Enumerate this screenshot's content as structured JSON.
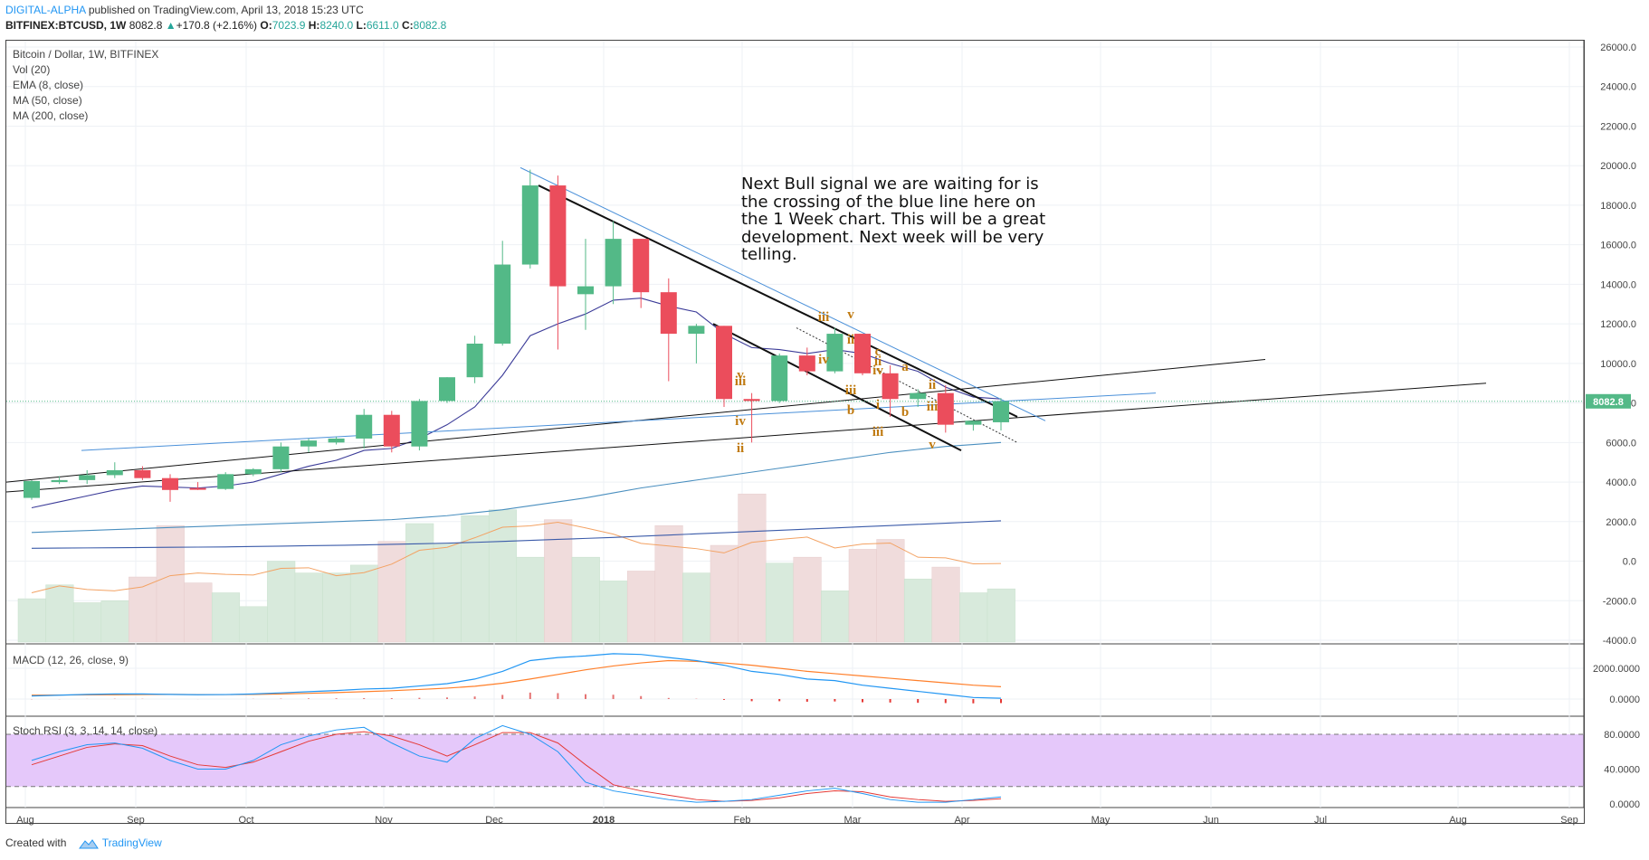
{
  "header": {
    "publisher": "DIGITAL-ALPHA",
    "published_text": " published on TradingView.com, April 13, 2018 15:23 UTC",
    "symbol": "BITFINEX:BTCUSD, 1W",
    "last": "8082.8",
    "change": "+170.8 (+2.16%)",
    "o_label": "O:",
    "o_val": "7023.9",
    "h_label": "H:",
    "h_val": "8240.0",
    "l_label": "L:",
    "l_val": "6611.0",
    "c_label": "C:",
    "c_val": "8082.8"
  },
  "legend": {
    "title": "Bitcoin / Dollar, 1W, BITFINEX",
    "vol": "Vol (20)",
    "ema": "EMA (8, close)",
    "ma50": "MA (50, close)",
    "ma200": "MA (200, close)",
    "macd": "MACD (12, 26, close, 9)",
    "stoch": "Stoch RSI (3, 3, 14, 14, close)"
  },
  "annotation": "Next Bull signal we are waiting for is\nthe crossing of the blue line here on\nthe 1 Week chart.  This will be a great\ndevelopment.  Next week will be very\ntelling.",
  "price_tag": "8082.8",
  "footer": {
    "created_with": "Created with",
    "brand": "TradingView"
  },
  "colors": {
    "bull": "#53b987",
    "bear": "#eb4d5c",
    "ema": "#3b3b98",
    "ma50": "#4a8fbf",
    "ma200": "#3b5ba9",
    "macd": "#2196f3",
    "signal": "#ff7f2a",
    "stoch_fill": "#e5c8fa",
    "wave": "#c07a10"
  },
  "chart_data": {
    "type": "candlestick",
    "title": "Bitcoin / Dollar, 1W, BITFINEX",
    "x_tick_labels": [
      "Aug",
      "Sep",
      "Oct",
      "Nov",
      "Dec",
      "2018",
      "Feb",
      "Mar",
      "Apr",
      "May",
      "Jun",
      "Jul",
      "Aug",
      "Sep"
    ],
    "y_tick_labels": [
      "26000.0",
      "24000.0",
      "22000.0",
      "20000.0",
      "18000.0",
      "16000.0",
      "14000.0",
      "12000.0",
      "10000.0",
      "8000.0",
      "6000.0",
      "4000.0",
      "2000.0",
      "0.0",
      "-2000.0",
      "-4000.0"
    ],
    "ylim": [
      -4000,
      26000
    ],
    "candles": [
      {
        "o": 3200,
        "h": 4100,
        "l": 3100,
        "c": 4050
      },
      {
        "o": 4000,
        "h": 4300,
        "l": 3900,
        "c": 4100
      },
      {
        "o": 4100,
        "h": 4600,
        "l": 3900,
        "c": 4350
      },
      {
        "o": 4350,
        "h": 5000,
        "l": 4200,
        "c": 4600
      },
      {
        "o": 4600,
        "h": 4800,
        "l": 4100,
        "c": 4200
      },
      {
        "o": 4200,
        "h": 4400,
        "l": 3000,
        "c": 3600
      },
      {
        "o": 3700,
        "h": 4000,
        "l": 3600,
        "c": 3650
      },
      {
        "o": 3650,
        "h": 4500,
        "l": 3600,
        "c": 4400
      },
      {
        "o": 4400,
        "h": 4700,
        "l": 4300,
        "c": 4650
      },
      {
        "o": 4650,
        "h": 6000,
        "l": 4500,
        "c": 5800
      },
      {
        "o": 5800,
        "h": 6200,
        "l": 5500,
        "c": 6100
      },
      {
        "o": 6000,
        "h": 6300,
        "l": 5900,
        "c": 6200
      },
      {
        "o": 6200,
        "h": 7700,
        "l": 5700,
        "c": 7400
      },
      {
        "o": 7400,
        "h": 7600,
        "l": 5500,
        "c": 5800
      },
      {
        "o": 5800,
        "h": 8200,
        "l": 5600,
        "c": 8100
      },
      {
        "o": 8100,
        "h": 9300,
        "l": 8000,
        "c": 9300
      },
      {
        "o": 9300,
        "h": 11400,
        "l": 9000,
        "c": 11000
      },
      {
        "o": 11000,
        "h": 16200,
        "l": 10900,
        "c": 15000
      },
      {
        "o": 15000,
        "h": 19800,
        "l": 14800,
        "c": 19000
      },
      {
        "o": 19000,
        "h": 19500,
        "l": 10700,
        "c": 13900
      },
      {
        "o": 13500,
        "h": 16300,
        "l": 11700,
        "c": 13900
      },
      {
        "o": 13900,
        "h": 17200,
        "l": 13000,
        "c": 16300
      },
      {
        "o": 16300,
        "h": 16300,
        "l": 12800,
        "c": 13600
      },
      {
        "o": 13600,
        "h": 14300,
        "l": 9100,
        "c": 11500
      },
      {
        "o": 11500,
        "h": 12000,
        "l": 10000,
        "c": 11900
      },
      {
        "o": 11900,
        "h": 11900,
        "l": 7800,
        "c": 8200
      },
      {
        "o": 8200,
        "h": 8500,
        "l": 6000,
        "c": 8100
      },
      {
        "o": 8100,
        "h": 10500,
        "l": 8000,
        "c": 10400
      },
      {
        "o": 10400,
        "h": 10800,
        "l": 9400,
        "c": 9600
      },
      {
        "o": 9600,
        "h": 11800,
        "l": 9500,
        "c": 11500
      },
      {
        "o": 11500,
        "h": 11500,
        "l": 9400,
        "c": 9500
      },
      {
        "o": 9500,
        "h": 9900,
        "l": 7300,
        "c": 8200
      },
      {
        "o": 8200,
        "h": 8700,
        "l": 7800,
        "c": 8500
      },
      {
        "o": 8500,
        "h": 8900,
        "l": 6500,
        "c": 6900
      },
      {
        "o": 6900,
        "h": 7100,
        "l": 6600,
        "c": 7100
      },
      {
        "o": 7023.9,
        "h": 8240,
        "l": 6611,
        "c": 8082.8
      }
    ],
    "ema8": [
      2700,
      3000,
      3300,
      3600,
      3800,
      3750,
      3700,
      3800,
      4000,
      4400,
      4800,
      5100,
      5600,
      5700,
      6200,
      6900,
      7800,
      9400,
      11400,
      12000,
      12500,
      13200,
      13300,
      12900,
      12600,
      11500,
      10800,
      10700,
      10500,
      10700,
      10500,
      10000,
      9600,
      8800,
      8300,
      8200
    ],
    "ma50": [
      1450,
      1500,
      1550,
      1600,
      1650,
      1700,
      1750,
      1800,
      1850,
      1900,
      1950,
      2000,
      2050,
      2100,
      2200,
      2300,
      2450,
      2600,
      2800,
      3000,
      3200,
      3450,
      3700,
      3900,
      4100,
      4300,
      4500,
      4700,
      4900,
      5100,
      5300,
      5500,
      5650,
      5800,
      5900,
      6000
    ],
    "ma200": [
      650,
      660,
      670,
      680,
      690,
      700,
      710,
      720,
      740,
      760,
      780,
      800,
      820,
      850,
      880,
      910,
      950,
      1000,
      1050,
      1100,
      1150,
      1200,
      1260,
      1320,
      1380,
      1440,
      1500,
      1560,
      1620,
      1680,
      1740,
      1800,
      1860,
      1920,
      1980,
      2040
    ],
    "volume": [
      -1900,
      -1200,
      -2100,
      -2000,
      -800,
      1800,
      -1100,
      -1600,
      -2300,
      0,
      -600,
      -600,
      -200,
      1000,
      1900,
      900,
      2300,
      2600,
      200,
      2100,
      200,
      -1000,
      -500,
      1800,
      -600,
      800,
      3400,
      -100,
      200,
      -1500,
      600,
      1100,
      -900,
      -300,
      -1600,
      -1400
    ],
    "volume_dir": [
      "up",
      "up",
      "up",
      "up",
      "down",
      "down",
      "down",
      "up",
      "up",
      "up",
      "up",
      "up",
      "up",
      "down",
      "up",
      "up",
      "up",
      "up",
      "up",
      "down",
      "up",
      "up",
      "down",
      "down",
      "up",
      "down",
      "down",
      "up",
      "down",
      "up",
      "down",
      "down",
      "up",
      "down",
      "up",
      "up"
    ],
    "macd": {
      "ylim": [
        -500,
        3500
      ],
      "y_tick_labels": [
        "2000.0000",
        "0.0000"
      ],
      "macd": [
        200,
        250,
        300,
        330,
        330,
        300,
        280,
        290,
        330,
        400,
        480,
        550,
        650,
        700,
        850,
        1000,
        1300,
        1800,
        2500,
        2700,
        2800,
        2950,
        2900,
        2700,
        2500,
        2200,
        1800,
        1600,
        1300,
        1200,
        900,
        700,
        500,
        300,
        100,
        50
      ],
      "signal": [
        250,
        260,
        270,
        280,
        290,
        300,
        290,
        290,
        300,
        330,
        370,
        420,
        480,
        540,
        620,
        710,
        830,
        1030,
        1300,
        1600,
        1900,
        2150,
        2350,
        2500,
        2450,
        2350,
        2200,
        2000,
        1800,
        1650,
        1500,
        1350,
        1200,
        1050,
        900,
        800
      ],
      "hist": [
        -30,
        -20,
        20,
        50,
        40,
        0,
        -10,
        0,
        30,
        70,
        110,
        130,
        170,
        160,
        230,
        290,
        470,
        770,
        1200,
        1100,
        900,
        800,
        550,
        200,
        50,
        -150,
        -400,
        -400,
        -500,
        -450,
        -600,
        -650,
        -700,
        -750,
        -800,
        -750
      ]
    },
    "stoch_rsi": {
      "ylim": [
        -5,
        100
      ],
      "y_tick_labels": [
        "80.0000",
        "40.0000",
        "0.0000"
      ],
      "k": [
        50,
        60,
        68,
        70,
        64,
        50,
        40,
        40,
        50,
        68,
        78,
        85,
        88,
        70,
        55,
        48,
        75,
        90,
        80,
        60,
        25,
        15,
        10,
        5,
        2,
        3,
        5,
        10,
        15,
        18,
        12,
        5,
        2,
        2,
        5,
        8
      ],
      "d": [
        45,
        55,
        65,
        69,
        67,
        55,
        45,
        42,
        48,
        60,
        72,
        80,
        83,
        78,
        68,
        55,
        68,
        82,
        82,
        70,
        45,
        22,
        15,
        10,
        5,
        3,
        4,
        7,
        12,
        15,
        14,
        8,
        5,
        3,
        4,
        6
      ]
    }
  }
}
